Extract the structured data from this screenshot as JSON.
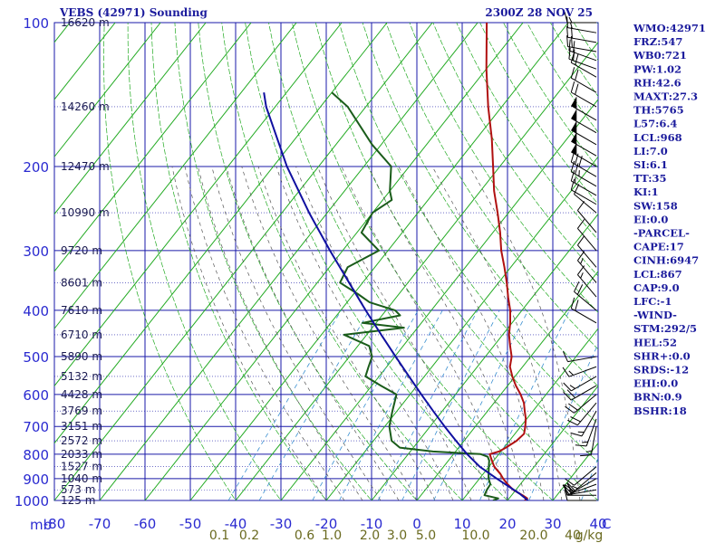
{
  "header": {
    "title": "VEBS (42971) Sounding",
    "datetime": "2300Z 28 NOV 25"
  },
  "indices": [
    "WMO:42971",
    "FRZ:547",
    "WB0:721",
    "PW:1.02",
    "RH:42.6",
    "MAXT:27.3",
    "TH:5765",
    "L57:6.4",
    "LCL:968",
    "LI:7.0",
    "SI:6.1",
    "TT:35",
    "KI:1",
    "SW:158",
    "EI:0.0",
    "-PARCEL-",
    "CAPE:17",
    "CINH:6947",
    "LCL:867",
    "CAP:9.0",
    "LFC:-1",
    "-WIND-",
    "STM:292/5",
    "HEL:52",
    "SHR+:0.0",
    "SRDS:-12",
    "EHI:0.0",
    "BRN:0.9",
    "BSHR:18"
  ],
  "chart_data": {
    "type": "skew-t",
    "y_axis": {
      "label": "mb",
      "scale": "log",
      "range": [
        1000,
        100
      ],
      "ticks": [
        100,
        200,
        300,
        400,
        500,
        600,
        700,
        800,
        900,
        1000
      ]
    },
    "x_axis": {
      "label": "C",
      "range": [
        -80,
        40
      ],
      "ticks": [
        -80,
        -70,
        -60,
        -50,
        -40,
        -30,
        -20,
        -10,
        0,
        10,
        20,
        30,
        40
      ],
      "tick_labels": [
        "-80",
        "-70",
        "-60",
        "-50",
        "-40",
        "-30",
        "-20",
        "-10",
        "0",
        "10",
        "20",
        "30",
        "40"
      ]
    },
    "height_labels": [
      {
        "p": 100,
        "label": "16620 m"
      },
      {
        "p": 150,
        "label": "14260 m"
      },
      {
        "p": 200,
        "label": "12470 m"
      },
      {
        "p": 250,
        "label": "10990 m"
      },
      {
        "p": 300,
        "label": "9720 m"
      },
      {
        "p": 350,
        "label": "8601 m"
      },
      {
        "p": 400,
        "label": "7610 m"
      },
      {
        "p": 450,
        "label": "6710 m"
      },
      {
        "p": 500,
        "label": "5890 m"
      },
      {
        "p": 550,
        "label": "5132 m"
      },
      {
        "p": 600,
        "label": "4428 m"
      },
      {
        "p": 650,
        "label": "3769 m"
      },
      {
        "p": 700,
        "label": "3151 m"
      },
      {
        "p": 750,
        "label": "2572 m"
      },
      {
        "p": 800,
        "label": "2033 m"
      },
      {
        "p": 850,
        "label": "1527 m"
      },
      {
        "p": 900,
        "label": "1040 m"
      },
      {
        "p": 950,
        "label": "573 m"
      },
      {
        "p": 1000,
        "label": "125 m"
      }
    ],
    "mixing_ratio_labels": [
      "0.1",
      "0.2",
      "0.6",
      "1.0",
      "2.0",
      "3.0",
      "5.0",
      "10.0",
      "20.0",
      "40",
      "g/kg"
    ],
    "mixing_ratios": [
      0.1,
      0.2,
      0.6,
      1.0,
      2.0,
      3.0,
      5.0,
      10.0,
      20.0,
      40.0
    ],
    "series": [
      {
        "role": "temperature",
        "color": "#b01010",
        "points": [
          [
            1000,
            23.8
          ],
          [
            990,
            24.0
          ],
          [
            975,
            22.4
          ],
          [
            950,
            19.4
          ],
          [
            925,
            17.2
          ],
          [
            900,
            15.2
          ],
          [
            880,
            13.8
          ],
          [
            850,
            11.2
          ],
          [
            825,
            9.6
          ],
          [
            800,
            8.0
          ],
          [
            790,
            9.6
          ],
          [
            775,
            10.4
          ],
          [
            750,
            11.6
          ],
          [
            725,
            12.0
          ],
          [
            700,
            11.0
          ],
          [
            675,
            9.8
          ],
          [
            650,
            8.2
          ],
          [
            625,
            6.6
          ],
          [
            600,
            4.4
          ],
          [
            575,
            1.8
          ],
          [
            550,
            -0.6
          ],
          [
            525,
            -2.8
          ],
          [
            500,
            -4.2
          ],
          [
            475,
            -6.4
          ],
          [
            450,
            -8.6
          ],
          [
            425,
            -10.4
          ],
          [
            400,
            -12.6
          ],
          [
            375,
            -15.4
          ],
          [
            350,
            -18.2
          ],
          [
            325,
            -21.4
          ],
          [
            300,
            -25.0
          ],
          [
            275,
            -28.4
          ],
          [
            250,
            -32.4
          ],
          [
            225,
            -37.0
          ],
          [
            200,
            -41.5
          ],
          [
            175,
            -46.6
          ],
          [
            150,
            -53.0
          ],
          [
            125,
            -60.0
          ],
          [
            100,
            -68.0
          ]
        ]
      },
      {
        "role": "dewpoint",
        "color": "#1a5c1a",
        "points": [
          [
            1000,
            16.8
          ],
          [
            990,
            17.6
          ],
          [
            975,
            14.0
          ],
          [
            950,
            13.6
          ],
          [
            925,
            13.4
          ],
          [
            900,
            12.0
          ],
          [
            875,
            11.0
          ],
          [
            850,
            10.0
          ],
          [
            825,
            9.0
          ],
          [
            810,
            8.0
          ],
          [
            800,
            6.0
          ],
          [
            790,
            -5.0
          ],
          [
            775,
            -13.0
          ],
          [
            750,
            -16.0
          ],
          [
            700,
            -19.0
          ],
          [
            650,
            -21.0
          ],
          [
            600,
            -23.0
          ],
          [
            575,
            -28.0
          ],
          [
            550,
            -33.0
          ],
          [
            525,
            -34.0
          ],
          [
            500,
            -35.0
          ],
          [
            475,
            -37.5
          ],
          [
            450,
            -45.0
          ],
          [
            435,
            -33.0
          ],
          [
            425,
            -43.0
          ],
          [
            410,
            -36.0
          ],
          [
            400,
            -38.0
          ],
          [
            385,
            -45.0
          ],
          [
            370,
            -49.0
          ],
          [
            350,
            -55.0
          ],
          [
            325,
            -56.0
          ],
          [
            300,
            -52.0
          ],
          [
            275,
            -59.0
          ],
          [
            250,
            -60.0
          ],
          [
            235,
            -58.0
          ],
          [
            225,
            -60.0
          ],
          [
            200,
            -64.0
          ],
          [
            180,
            -72.0
          ],
          [
            150,
            -84.0
          ],
          [
            140,
            -90.0
          ]
        ]
      },
      {
        "role": "parcel",
        "color": "#1010a0",
        "points": [
          [
            1000,
            24.5
          ],
          [
            968,
            21.5
          ],
          [
            900,
            13.8
          ],
          [
            850,
            8.0
          ],
          [
            800,
            3.0
          ],
          [
            750,
            -1.8
          ],
          [
            700,
            -6.8
          ],
          [
            650,
            -12.0
          ],
          [
            600,
            -17.5
          ],
          [
            550,
            -23.4
          ],
          [
            500,
            -29.8
          ],
          [
            450,
            -36.8
          ],
          [
            400,
            -44.5
          ],
          [
            350,
            -53.0
          ],
          [
            300,
            -62.8
          ],
          [
            250,
            -74.0
          ],
          [
            200,
            -87.0
          ],
          [
            150,
            -102.0
          ],
          [
            140,
            -105.0
          ]
        ]
      }
    ],
    "winds": [
      {
        "p": 1000,
        "dir": 270,
        "spd": 10
      },
      {
        "p": 975,
        "dir": 270,
        "spd": 15
      },
      {
        "p": 950,
        "dir": 260,
        "spd": 20
      },
      {
        "p": 925,
        "dir": 250,
        "spd": 20
      },
      {
        "p": 900,
        "dir": 240,
        "spd": 20
      },
      {
        "p": 875,
        "dir": 230,
        "spd": 15
      },
      {
        "p": 850,
        "dir": 230,
        "spd": 10
      },
      {
        "p": 700,
        "dir": 190,
        "spd": 15
      },
      {
        "p": 675,
        "dir": 200,
        "spd": 15
      },
      {
        "p": 650,
        "dir": 210,
        "spd": 15
      },
      {
        "p": 625,
        "dir": 220,
        "spd": 20
      },
      {
        "p": 600,
        "dir": 230,
        "spd": 20
      },
      {
        "p": 575,
        "dir": 240,
        "spd": 20
      },
      {
        "p": 550,
        "dir": 240,
        "spd": 15
      },
      {
        "p": 525,
        "dir": 250,
        "spd": 15
      },
      {
        "p": 500,
        "dir": 260,
        "spd": 10
      },
      {
        "p": 425,
        "dir": 300,
        "spd": 20
      },
      {
        "p": 400,
        "dir": 310,
        "spd": 20
      },
      {
        "p": 375,
        "dir": 320,
        "spd": 15
      },
      {
        "p": 350,
        "dir": 320,
        "spd": 15
      },
      {
        "p": 325,
        "dir": 320,
        "spd": 10
      },
      {
        "p": 300,
        "dir": 320,
        "spd": 10
      },
      {
        "p": 275,
        "dir": 320,
        "spd": 10
      },
      {
        "p": 250,
        "dir": 310,
        "spd": 10
      },
      {
        "p": 240,
        "dir": 300,
        "spd": 10
      },
      {
        "p": 230,
        "dir": 300,
        "spd": 15
      },
      {
        "p": 220,
        "dir": 300,
        "spd": 25
      },
      {
        "p": 210,
        "dir": 300,
        "spd": 30
      },
      {
        "p": 200,
        "dir": 300,
        "spd": 50
      },
      {
        "p": 190,
        "dir": 300,
        "spd": 50
      },
      {
        "p": 180,
        "dir": 300,
        "spd": 50
      },
      {
        "p": 170,
        "dir": 300,
        "spd": 50
      },
      {
        "p": 160,
        "dir": 300,
        "spd": 50
      },
      {
        "p": 150,
        "dir": 300,
        "spd": 20
      },
      {
        "p": 140,
        "dir": 300,
        "spd": 20
      },
      {
        "p": 130,
        "dir": 300,
        "spd": 20
      },
      {
        "p": 125,
        "dir": 290,
        "spd": 20
      },
      {
        "p": 120,
        "dir": 290,
        "spd": 20
      },
      {
        "p": 115,
        "dir": 280,
        "spd": 20
      },
      {
        "p": 110,
        "dir": 280,
        "spd": 20
      },
      {
        "p": 105,
        "dir": 280,
        "spd": 15
      },
      {
        "p": 100,
        "dir": 270,
        "spd": 15
      }
    ]
  },
  "colors": {
    "grid": "#1a1aa8",
    "isotherm": "#22aa22",
    "dry_adiabat": "#22aa22",
    "moist_adiabat": "#555555",
    "mixing_ratio": "#3a8fd0",
    "temperature": "#b01010",
    "dewpoint": "#1a5c1a",
    "parcel": "#1010a0",
    "wind": "#000000",
    "text": "#1a1a9c"
  }
}
